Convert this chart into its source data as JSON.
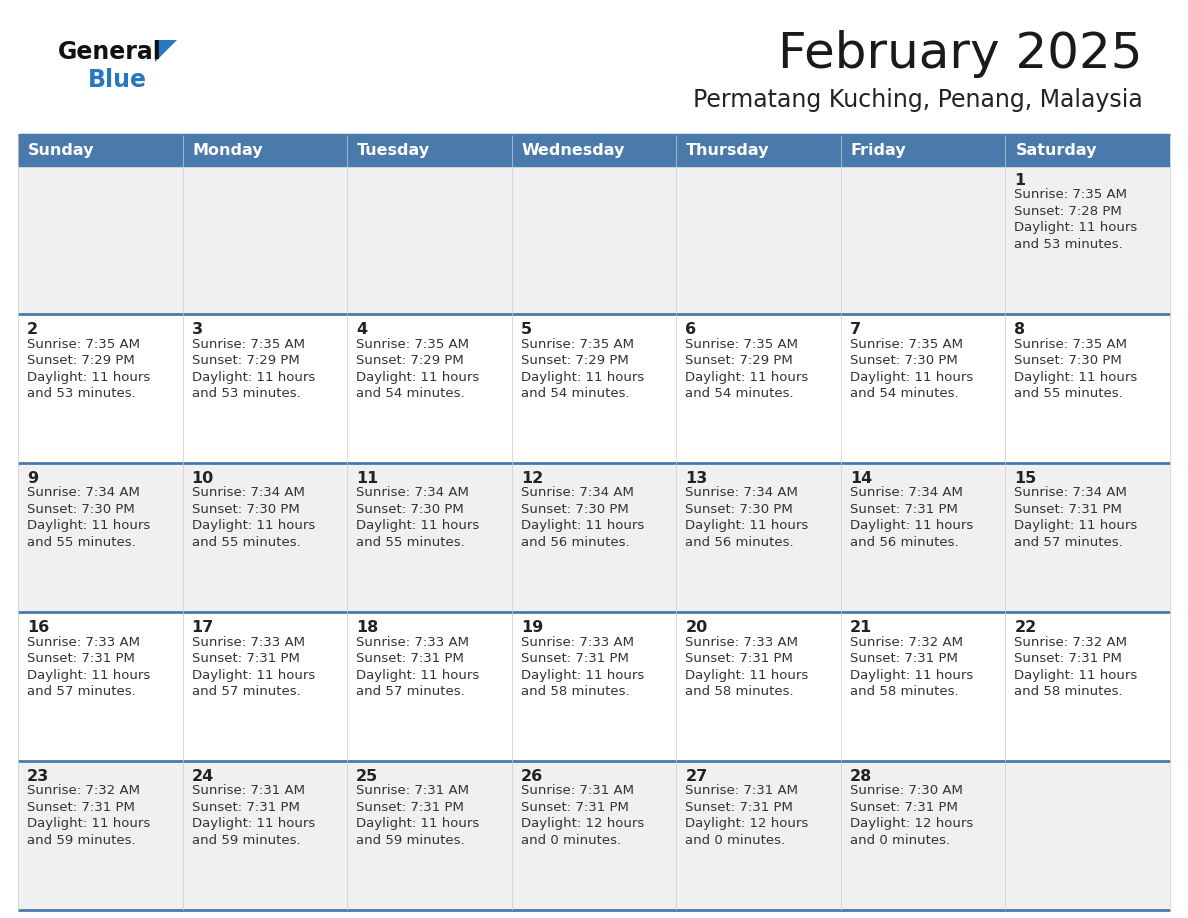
{
  "title": "February 2025",
  "subtitle": "Permatang Kuching, Penang, Malaysia",
  "days_of_week": [
    "Sunday",
    "Monday",
    "Tuesday",
    "Wednesday",
    "Thursday",
    "Friday",
    "Saturday"
  ],
  "header_bg": "#4a7aac",
  "header_text": "#FFFFFF",
  "cell_bg_light": "#f0f0f0",
  "cell_bg_white": "#FFFFFF",
  "border_color": "#4a7aac",
  "day_num_color": "#222222",
  "cell_text_color": "#333333",
  "title_color": "#1a1a1a",
  "subtitle_color": "#222222",
  "logo_general_color": "#111111",
  "logo_blue_color": "#2878C0",
  "calendar_data": [
    {
      "day": 1,
      "col": 6,
      "row": 0,
      "sunrise": "7:35 AM",
      "sunset": "7:28 PM",
      "daylight": "11 hours",
      "daylight2": "and 53 minutes."
    },
    {
      "day": 2,
      "col": 0,
      "row": 1,
      "sunrise": "7:35 AM",
      "sunset": "7:29 PM",
      "daylight": "11 hours",
      "daylight2": "and 53 minutes."
    },
    {
      "day": 3,
      "col": 1,
      "row": 1,
      "sunrise": "7:35 AM",
      "sunset": "7:29 PM",
      "daylight": "11 hours",
      "daylight2": "and 53 minutes."
    },
    {
      "day": 4,
      "col": 2,
      "row": 1,
      "sunrise": "7:35 AM",
      "sunset": "7:29 PM",
      "daylight": "11 hours",
      "daylight2": "and 54 minutes."
    },
    {
      "day": 5,
      "col": 3,
      "row": 1,
      "sunrise": "7:35 AM",
      "sunset": "7:29 PM",
      "daylight": "11 hours",
      "daylight2": "and 54 minutes."
    },
    {
      "day": 6,
      "col": 4,
      "row": 1,
      "sunrise": "7:35 AM",
      "sunset": "7:29 PM",
      "daylight": "11 hours",
      "daylight2": "and 54 minutes."
    },
    {
      "day": 7,
      "col": 5,
      "row": 1,
      "sunrise": "7:35 AM",
      "sunset": "7:30 PM",
      "daylight": "11 hours",
      "daylight2": "and 54 minutes."
    },
    {
      "day": 8,
      "col": 6,
      "row": 1,
      "sunrise": "7:35 AM",
      "sunset": "7:30 PM",
      "daylight": "11 hours",
      "daylight2": "and 55 minutes."
    },
    {
      "day": 9,
      "col": 0,
      "row": 2,
      "sunrise": "7:34 AM",
      "sunset": "7:30 PM",
      "daylight": "11 hours",
      "daylight2": "and 55 minutes."
    },
    {
      "day": 10,
      "col": 1,
      "row": 2,
      "sunrise": "7:34 AM",
      "sunset": "7:30 PM",
      "daylight": "11 hours",
      "daylight2": "and 55 minutes."
    },
    {
      "day": 11,
      "col": 2,
      "row": 2,
      "sunrise": "7:34 AM",
      "sunset": "7:30 PM",
      "daylight": "11 hours",
      "daylight2": "and 55 minutes."
    },
    {
      "day": 12,
      "col": 3,
      "row": 2,
      "sunrise": "7:34 AM",
      "sunset": "7:30 PM",
      "daylight": "11 hours",
      "daylight2": "and 56 minutes."
    },
    {
      "day": 13,
      "col": 4,
      "row": 2,
      "sunrise": "7:34 AM",
      "sunset": "7:30 PM",
      "daylight": "11 hours",
      "daylight2": "and 56 minutes."
    },
    {
      "day": 14,
      "col": 5,
      "row": 2,
      "sunrise": "7:34 AM",
      "sunset": "7:31 PM",
      "daylight": "11 hours",
      "daylight2": "and 56 minutes."
    },
    {
      "day": 15,
      "col": 6,
      "row": 2,
      "sunrise": "7:34 AM",
      "sunset": "7:31 PM",
      "daylight": "11 hours",
      "daylight2": "and 57 minutes."
    },
    {
      "day": 16,
      "col": 0,
      "row": 3,
      "sunrise": "7:33 AM",
      "sunset": "7:31 PM",
      "daylight": "11 hours",
      "daylight2": "and 57 minutes."
    },
    {
      "day": 17,
      "col": 1,
      "row": 3,
      "sunrise": "7:33 AM",
      "sunset": "7:31 PM",
      "daylight": "11 hours",
      "daylight2": "and 57 minutes."
    },
    {
      "day": 18,
      "col": 2,
      "row": 3,
      "sunrise": "7:33 AM",
      "sunset": "7:31 PM",
      "daylight": "11 hours",
      "daylight2": "and 57 minutes."
    },
    {
      "day": 19,
      "col": 3,
      "row": 3,
      "sunrise": "7:33 AM",
      "sunset": "7:31 PM",
      "daylight": "11 hours",
      "daylight2": "and 58 minutes."
    },
    {
      "day": 20,
      "col": 4,
      "row": 3,
      "sunrise": "7:33 AM",
      "sunset": "7:31 PM",
      "daylight": "11 hours",
      "daylight2": "and 58 minutes."
    },
    {
      "day": 21,
      "col": 5,
      "row": 3,
      "sunrise": "7:32 AM",
      "sunset": "7:31 PM",
      "daylight": "11 hours",
      "daylight2": "and 58 minutes."
    },
    {
      "day": 22,
      "col": 6,
      "row": 3,
      "sunrise": "7:32 AM",
      "sunset": "7:31 PM",
      "daylight": "11 hours",
      "daylight2": "and 58 minutes."
    },
    {
      "day": 23,
      "col": 0,
      "row": 4,
      "sunrise": "7:32 AM",
      "sunset": "7:31 PM",
      "daylight": "11 hours",
      "daylight2": "and 59 minutes."
    },
    {
      "day": 24,
      "col": 1,
      "row": 4,
      "sunrise": "7:31 AM",
      "sunset": "7:31 PM",
      "daylight": "11 hours",
      "daylight2": "and 59 minutes."
    },
    {
      "day": 25,
      "col": 2,
      "row": 4,
      "sunrise": "7:31 AM",
      "sunset": "7:31 PM",
      "daylight": "11 hours",
      "daylight2": "and 59 minutes."
    },
    {
      "day": 26,
      "col": 3,
      "row": 4,
      "sunrise": "7:31 AM",
      "sunset": "7:31 PM",
      "daylight": "12 hours",
      "daylight2": "and 0 minutes."
    },
    {
      "day": 27,
      "col": 4,
      "row": 4,
      "sunrise": "7:31 AM",
      "sunset": "7:31 PM",
      "daylight": "12 hours",
      "daylight2": "and 0 minutes."
    },
    {
      "day": 28,
      "col": 5,
      "row": 4,
      "sunrise": "7:30 AM",
      "sunset": "7:31 PM",
      "daylight": "12 hours",
      "daylight2": "and 0 minutes."
    }
  ]
}
